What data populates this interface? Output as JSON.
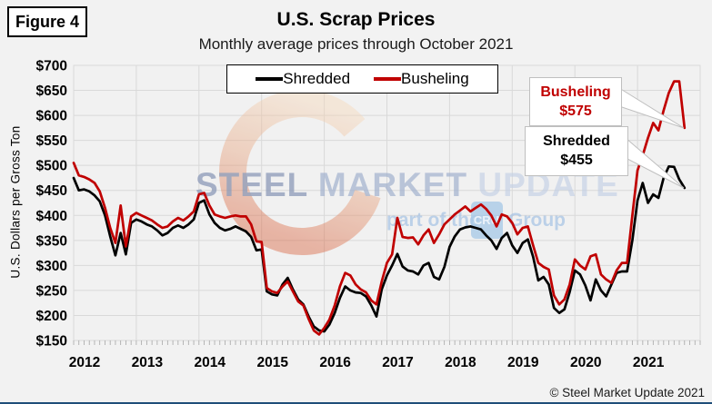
{
  "figure_label": "Figure 4",
  "header": {
    "title": "U.S. Scrap Prices",
    "subtitle": "Monthly average prices through October 2021"
  },
  "y_axis_label": "U.S. Dollars per Gross Ton",
  "callouts": {
    "busheling": {
      "label": "Busheling",
      "value": "$575"
    },
    "shredded": {
      "label": "Shredded",
      "value": "$455"
    }
  },
  "watermark": {
    "word1": "STEEL ",
    "word2": "MARKET ",
    "word3": "UPDATE",
    "tagline_prefix": "part of the",
    "logo": "CRU",
    "tagline_suffix": "Group"
  },
  "footer": {
    "copyright": "© Steel Market Update 2021"
  },
  "colors": {
    "background": "#F2F2F2",
    "grid": "#D9D9D9",
    "tick": "#A6A6A6",
    "series_shredded": "#000000",
    "series_busheling": "#C00000",
    "watermark_blue": "#9DC3E6",
    "crescent_orange": "#DE6A43",
    "callout_border": "#BFBFBF",
    "bottom_bar": "#1F4E79"
  },
  "chart_data": {
    "type": "line",
    "title": "U.S. Scrap Prices",
    "subtitle": "Monthly average prices through October 2021",
    "ylabel": "U.S. Dollars per Gross Ton",
    "x_start": "2012-01",
    "x_end": "2021-10",
    "x_tick_years": [
      2012,
      2013,
      2014,
      2015,
      2016,
      2017,
      2018,
      2019,
      2020,
      2021
    ],
    "ylim": [
      150,
      700
    ],
    "ytick_step": 50,
    "ytick_prefix": "$",
    "grid": true,
    "legend_position": "top-center",
    "series": [
      {
        "name": "Shredded",
        "color": "#000000",
        "values": [
          475,
          450,
          452,
          448,
          440,
          428,
          400,
          358,
          320,
          365,
          322,
          385,
          392,
          388,
          382,
          378,
          370,
          360,
          365,
          375,
          380,
          375,
          382,
          392,
          425,
          430,
          402,
          385,
          375,
          370,
          373,
          378,
          373,
          368,
          357,
          330,
          332,
          248,
          242,
          240,
          262,
          275,
          252,
          232,
          222,
          198,
          178,
          170,
          168,
          182,
          205,
          235,
          258,
          250,
          246,
          245,
          238,
          220,
          198,
          252,
          280,
          300,
          323,
          298,
          290,
          288,
          282,
          300,
          305,
          277,
          272,
          297,
          337,
          358,
          372,
          376,
          378,
          375,
          372,
          360,
          350,
          333,
          355,
          365,
          340,
          325,
          345,
          352,
          317,
          270,
          277,
          262,
          215,
          205,
          212,
          247,
          290,
          282,
          260,
          230,
          272,
          250,
          238,
          262,
          285,
          288,
          288,
          350,
          430,
          465,
          425,
          442,
          435,
          475,
          498,
          497,
          472,
          455
        ]
      },
      {
        "name": "Busheling",
        "color": "#C00000",
        "values": [
          505,
          480,
          477,
          472,
          465,
          448,
          415,
          375,
          345,
          420,
          338,
          398,
          405,
          400,
          395,
          390,
          382,
          375,
          378,
          388,
          395,
          390,
          398,
          408,
          442,
          445,
          420,
          402,
          398,
          395,
          398,
          400,
          398,
          398,
          382,
          348,
          347,
          255,
          248,
          245,
          258,
          268,
          248,
          228,
          220,
          193,
          170,
          162,
          175,
          192,
          220,
          258,
          285,
          280,
          262,
          252,
          246,
          230,
          222,
          268,
          305,
          322,
          395,
          357,
          355,
          356,
          342,
          360,
          372,
          345,
          362,
          382,
          392,
          402,
          410,
          418,
          408,
          415,
          422,
          413,
          400,
          378,
          402,
          398,
          385,
          362,
          375,
          378,
          340,
          305,
          297,
          292,
          240,
          222,
          232,
          262,
          312,
          300,
          292,
          318,
          322,
          282,
          272,
          265,
          290,
          305,
          305,
          400,
          490,
          520,
          555,
          585,
          570,
          610,
          645,
          668,
          668,
          575
        ]
      }
    ]
  }
}
